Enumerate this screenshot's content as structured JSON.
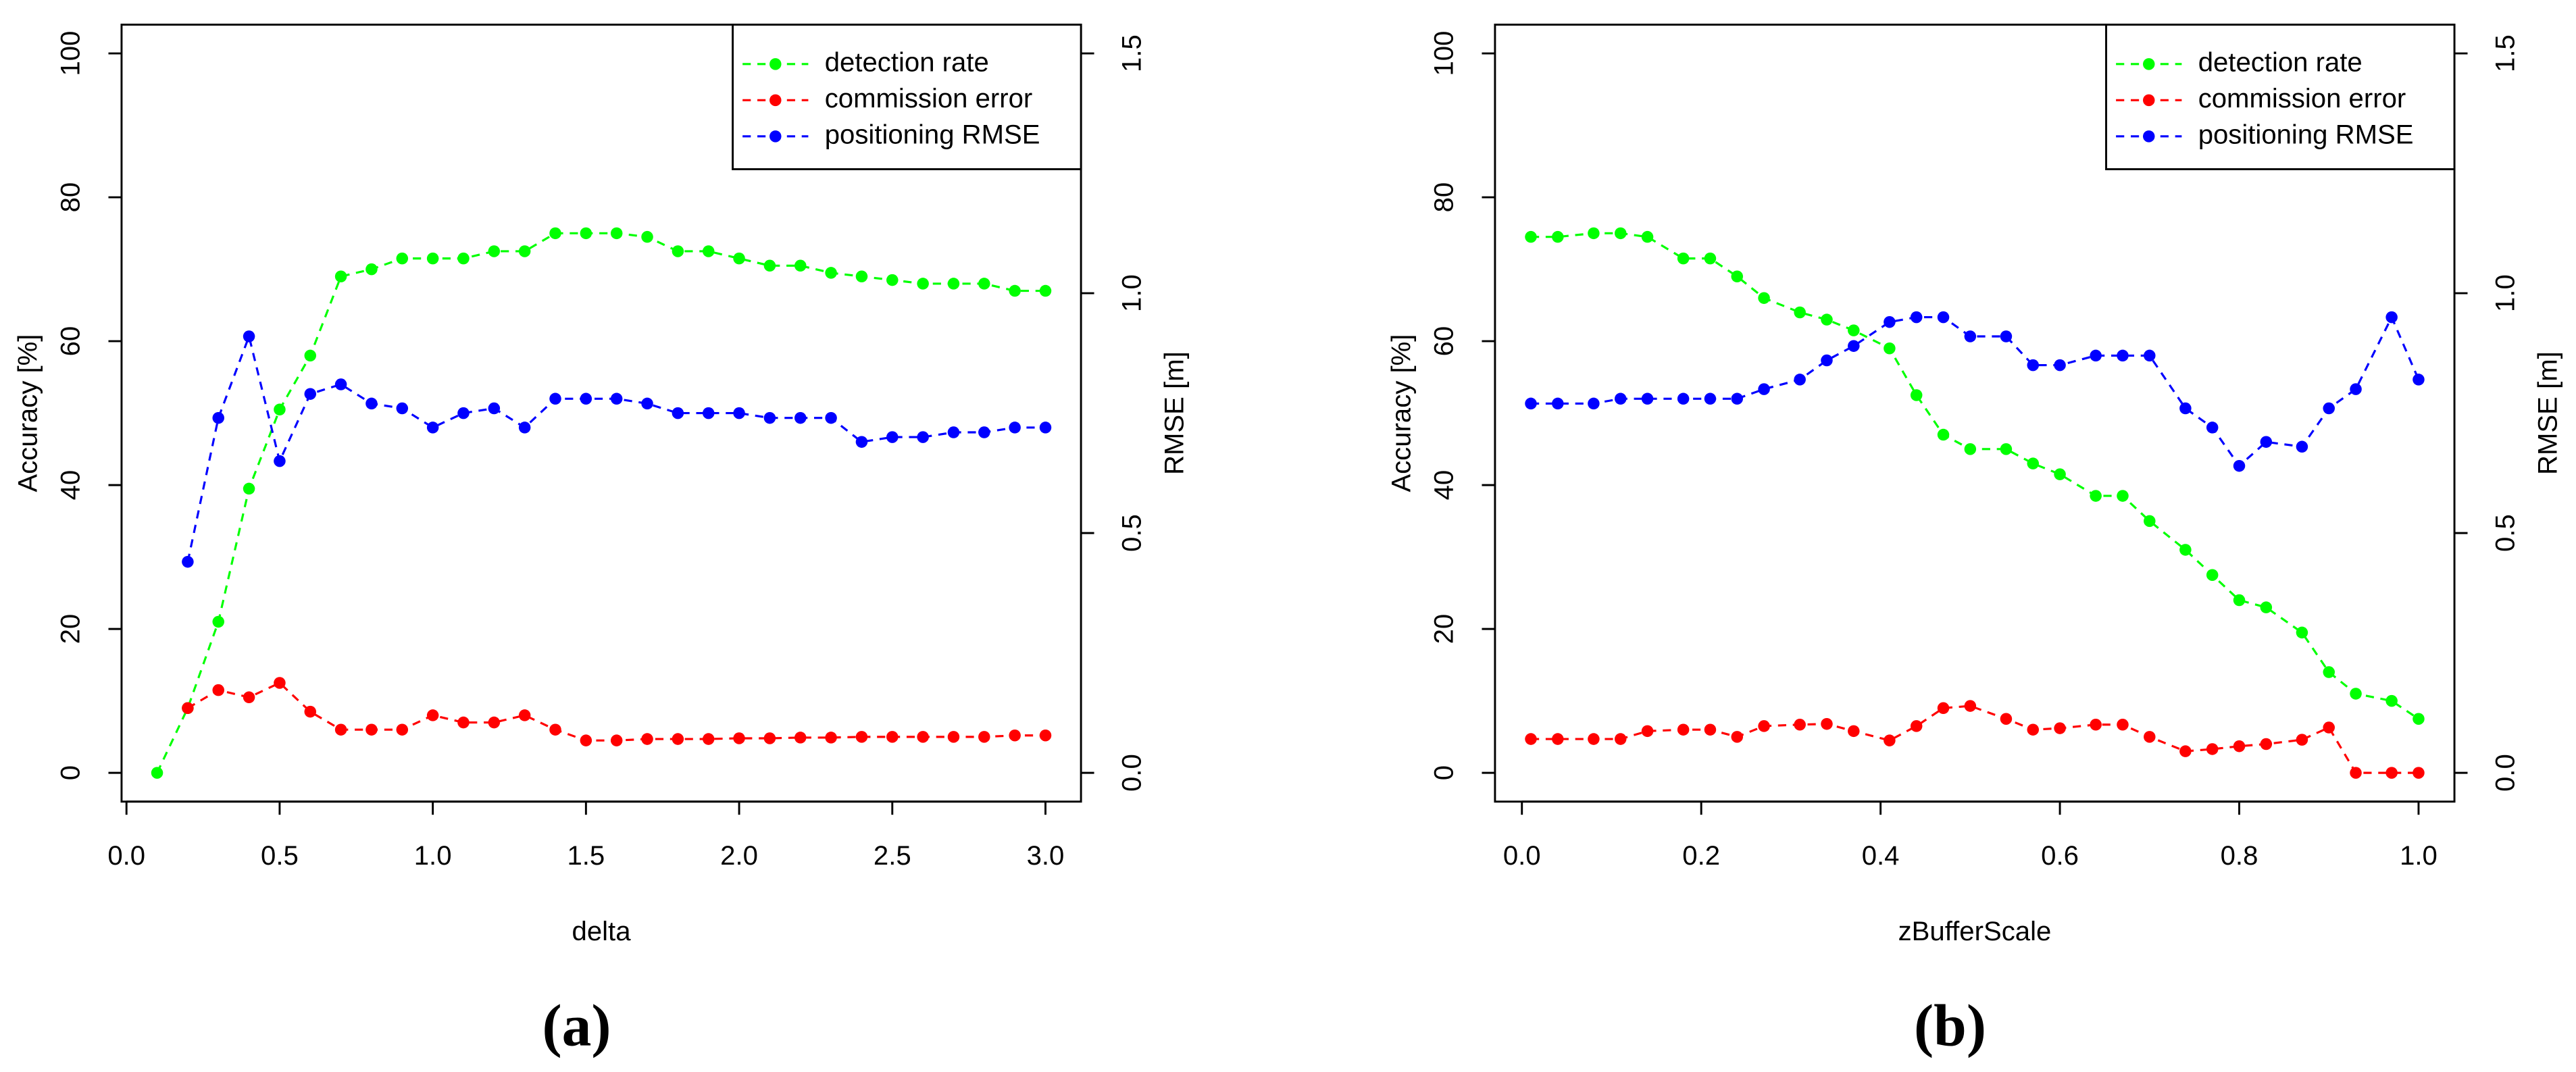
{
  "chart_data": [
    {
      "type": "line",
      "caption": "(a)",
      "xlabel": "delta",
      "ylabel": "Accuracy [%]",
      "y2label": "RMSE [m]",
      "legend": "topright",
      "x": [
        0.1,
        0.2,
        0.3,
        0.4,
        0.5,
        0.6,
        0.7,
        0.8,
        0.9,
        1.0,
        1.1,
        1.2,
        1.3,
        1.4,
        1.5,
        1.6,
        1.7,
        1.8,
        1.9,
        2.0,
        2.1,
        2.2,
        2.3,
        2.4,
        2.5,
        2.6,
        2.7,
        2.8,
        2.9,
        3.0
      ],
      "series": [
        {
          "name": "detection rate",
          "color": "#00ff00",
          "values": [
            0,
            9,
            21,
            39.5,
            50.5,
            58,
            69,
            70,
            71.5,
            71.5,
            71.5,
            72.5,
            72.5,
            75,
            75,
            75,
            74.5,
            72.5,
            72.5,
            71.5,
            70.5,
            70.5,
            69.5,
            69,
            68.5,
            68,
            68,
            68,
            67,
            67
          ]
        },
        {
          "name": "commission error",
          "color": "#ff0000",
          "values": [
            null,
            9,
            11.5,
            10.5,
            12.5,
            8.5,
            6,
            6,
            6,
            8,
            7,
            7,
            8,
            6,
            4.5,
            4.5,
            4.7,
            4.7,
            4.7,
            4.8,
            4.8,
            4.9,
            4.9,
            5,
            5,
            5,
            5,
            5,
            5.2,
            5.2
          ]
        },
        {
          "name": "positioning RMSE",
          "color": "#0000ff",
          "axis": "y2",
          "values": [
            null,
            0.44,
            0.74,
            0.91,
            0.65,
            0.79,
            0.81,
            0.77,
            0.76,
            0.72,
            0.75,
            0.76,
            0.72,
            0.78,
            0.78,
            0.78,
            0.77,
            0.75,
            0.75,
            0.75,
            0.74,
            0.74,
            0.74,
            0.69,
            0.7,
            0.7,
            0.71,
            0.71,
            0.72,
            0.72
          ]
        }
      ],
      "xlim": [
        -0.016,
        3.116
      ],
      "xticks": [
        {
          "value": 0,
          "label": "0.0"
        },
        0.5,
        {
          "value": 1,
          "label": "1.0"
        },
        1.5,
        {
          "value": 2,
          "label": "2.0"
        },
        2.5,
        {
          "value": 3,
          "label": "3.0"
        }
      ],
      "ylim": [
        -4,
        104
      ],
      "yticks": [
        0,
        20,
        40,
        60,
        80,
        100
      ],
      "y2lim": [
        -0.06,
        1.56
      ],
      "y2ticks": [
        {
          "value": 0,
          "label": "0.0"
        },
        0.5,
        {
          "value": 1,
          "label": "1.0"
        },
        1.5
      ]
    },
    {
      "type": "line",
      "caption": "(b)",
      "xlabel": "zBufferScale",
      "ylabel": "Accuracy [%]",
      "y2label": "RMSE [m]",
      "legend": "topright",
      "x": [
        0.01,
        0.04,
        0.08,
        0.11,
        0.14,
        0.18,
        0.21,
        0.24,
        0.27,
        0.31,
        0.34,
        0.37,
        0.41,
        0.44,
        0.47,
        0.5,
        0.54,
        0.57,
        0.6,
        0.64,
        0.67,
        0.7,
        0.74,
        0.77,
        0.8,
        0.83,
        0.87,
        0.9,
        0.93,
        0.97,
        1.0
      ],
      "series": [
        {
          "name": "detection rate",
          "color": "#00ff00",
          "values": [
            74.5,
            74.5,
            75,
            75,
            74.5,
            71.5,
            71.5,
            69,
            66,
            64,
            63,
            61.5,
            59,
            52.5,
            47,
            45,
            45,
            43,
            41.5,
            38.5,
            38.5,
            35,
            31,
            27.5,
            24,
            23,
            19.5,
            14,
            11,
            10,
            7.5
          ]
        },
        {
          "name": "commission error",
          "color": "#ff0000",
          "values": [
            4.7,
            4.7,
            4.7,
            4.7,
            5.8,
            6,
            6,
            5,
            6.5,
            6.7,
            6.8,
            5.8,
            4.5,
            6.5,
            9,
            9.3,
            7.5,
            6,
            6.2,
            6.7,
            6.7,
            5,
            3,
            3.3,
            3.7,
            4,
            4.6,
            6.3,
            0,
            0,
            0
          ]
        },
        {
          "name": "positioning RMSE",
          "color": "#0000ff",
          "axis": "y2",
          "values": [
            0.77,
            0.77,
            0.77,
            0.78,
            0.78,
            0.78,
            0.78,
            0.78,
            0.8,
            0.82,
            0.86,
            0.89,
            0.94,
            0.95,
            0.95,
            0.91,
            0.91,
            0.85,
            0.85,
            0.87,
            0.87,
            0.87,
            0.76,
            0.72,
            0.64,
            0.69,
            0.68,
            0.76,
            0.8,
            0.95,
            0.82
          ]
        }
      ],
      "xlim": [
        -0.03,
        1.04
      ],
      "xticks": [
        {
          "value": 0,
          "label": "0.0"
        },
        0.2,
        0.4,
        0.6,
        0.8,
        {
          "value": 1,
          "label": "1.0"
        }
      ],
      "ylim": [
        -4,
        104
      ],
      "yticks": [
        0,
        20,
        40,
        60,
        80,
        100
      ],
      "y2lim": [
        -0.06,
        1.56
      ],
      "y2ticks": [
        {
          "value": 0,
          "label": "0.0"
        },
        0.5,
        {
          "value": 1,
          "label": "1.0"
        },
        1.5
      ]
    }
  ]
}
